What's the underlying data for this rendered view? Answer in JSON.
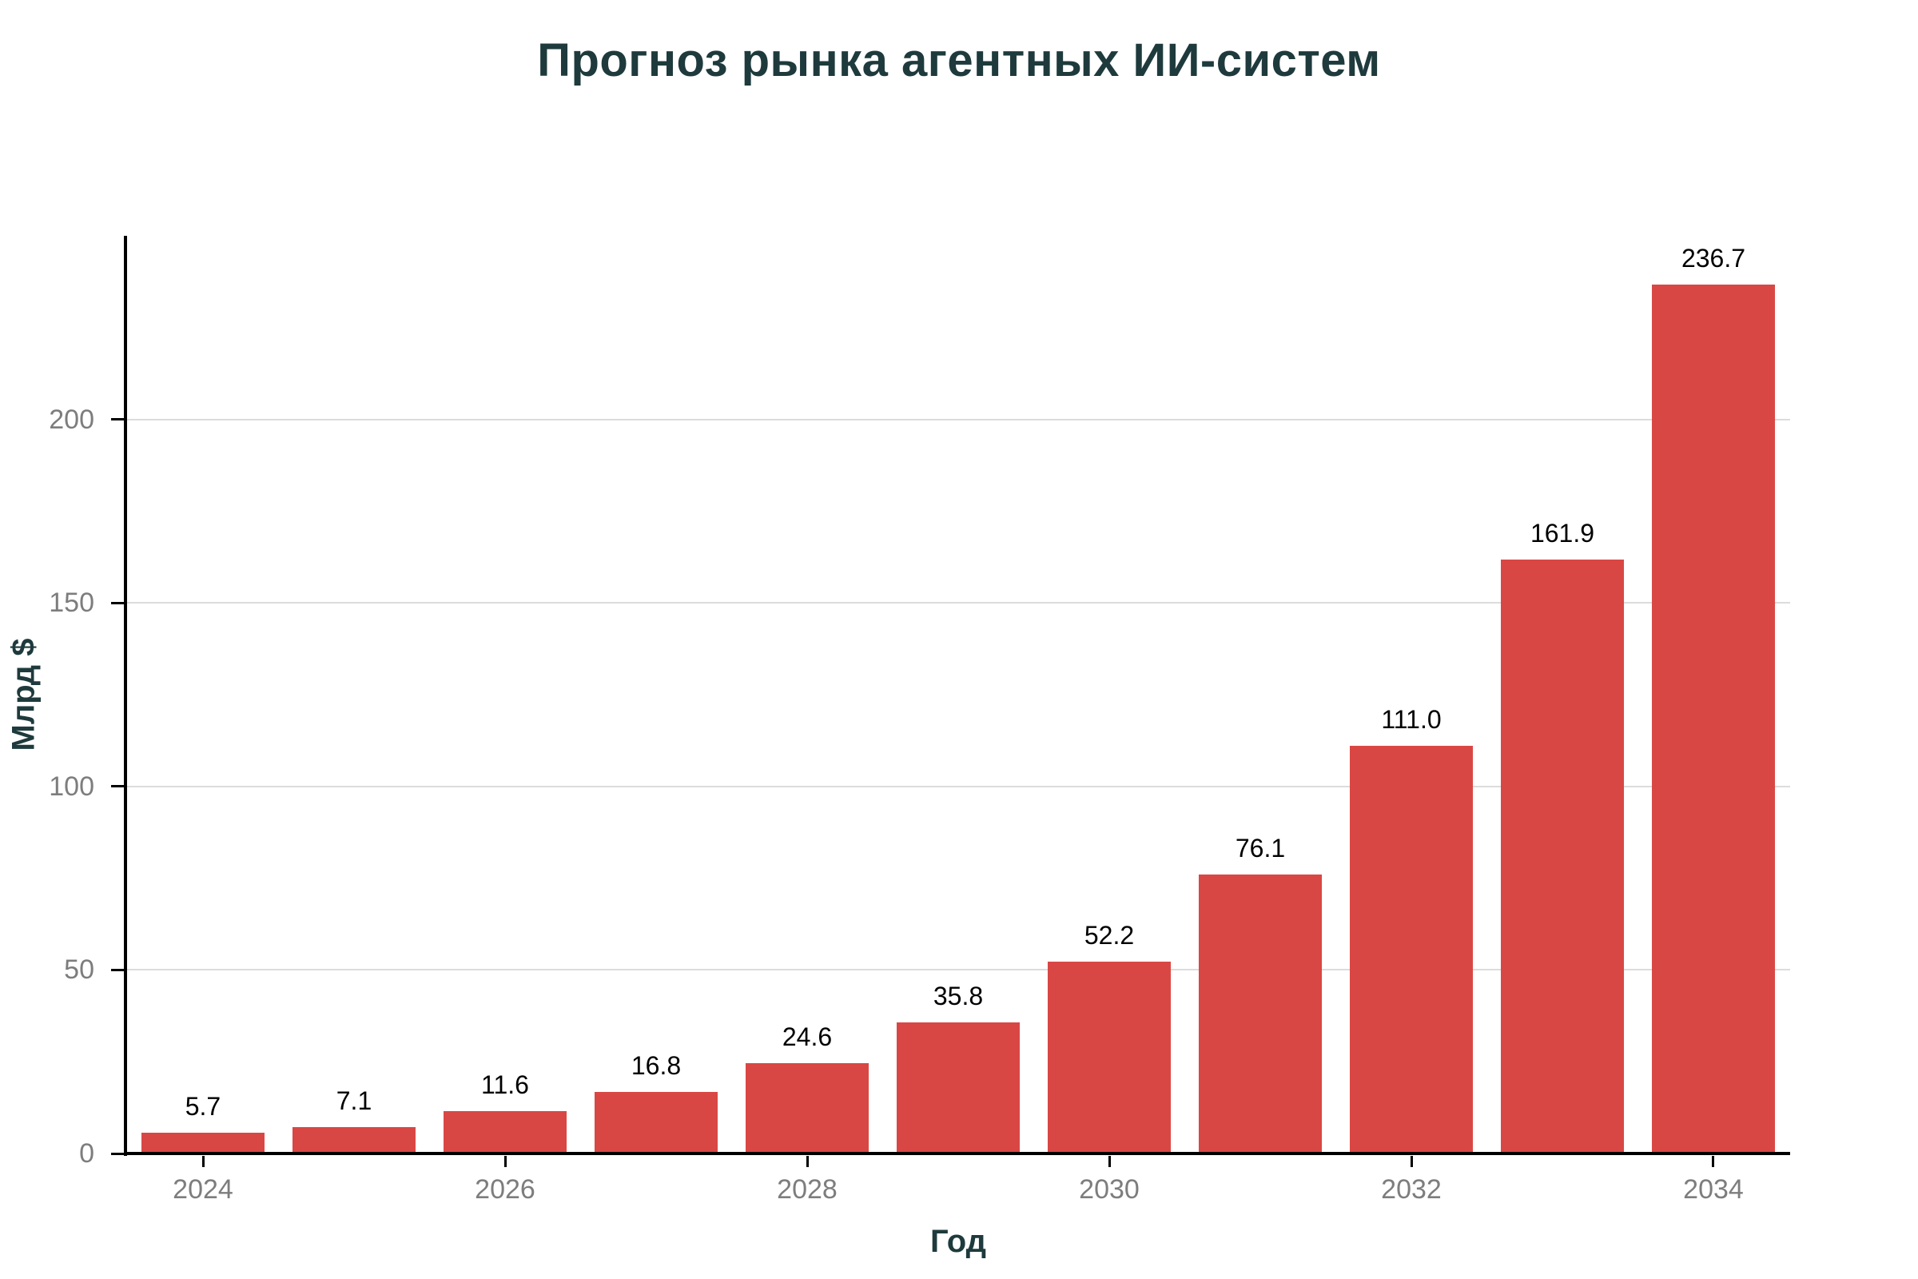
{
  "title": "Прогноз рынка агентных ИИ-систем",
  "colors": {
    "bar": "#d94744",
    "heading": "#1e3a3c",
    "grid": "#dcdcdc",
    "tick_label": "#7d7d7d",
    "axis": "#000000",
    "value_label": "#000000"
  },
  "chart_data": {
    "type": "bar",
    "title": "Прогноз рынка агентных ИИ-систем",
    "xlabel": "Год",
    "ylabel": "Млрд $",
    "categories": [
      2024,
      2025,
      2026,
      2027,
      2028,
      2029,
      2030,
      2031,
      2032,
      2033,
      2034
    ],
    "values": [
      5.7,
      7.1,
      11.6,
      16.8,
      24.6,
      35.8,
      52.2,
      76.1,
      111.0,
      161.9,
      236.7
    ],
    "bar_labels": [
      "5.7",
      "7.1",
      "11.6",
      "16.8",
      "24.6",
      "35.8",
      "52.2",
      "76.1",
      "111.0",
      "161.9",
      "236.7"
    ],
    "ylim": [
      0,
      250
    ],
    "yticks": [
      0,
      50,
      100,
      150,
      200
    ],
    "ytick_labels": [
      "0",
      "50",
      "100",
      "150",
      "200"
    ],
    "xtick_years": [
      2024,
      2026,
      2028,
      2030,
      2032,
      2034
    ],
    "xtick_labels": [
      "2024",
      "2026",
      "2028",
      "2030",
      "2032",
      "2034"
    ],
    "grid": "horizontal",
    "legend": "none"
  }
}
